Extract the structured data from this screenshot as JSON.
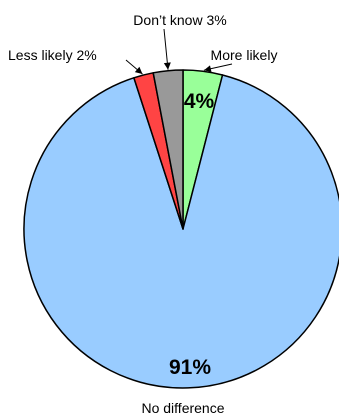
{
  "chart_data": {
    "type": "pie",
    "title": "",
    "start": "top",
    "direction": "clockwise",
    "slices": [
      {
        "name": "More likely",
        "value": 4,
        "label": "More likely",
        "data_label": "4%",
        "color": "#99ff99"
      },
      {
        "name": "No difference",
        "value": 91,
        "label": "No difference",
        "data_label": "91%",
        "color": "#99ccff"
      },
      {
        "name": "Less likely",
        "value": 2,
        "label": "Less likely 2%",
        "data_label": "",
        "color": "#ff4444"
      },
      {
        "name": "Don't know",
        "value": 3,
        "label": "Don’t know 3%",
        "data_label": "",
        "color": "#999999"
      }
    ]
  }
}
